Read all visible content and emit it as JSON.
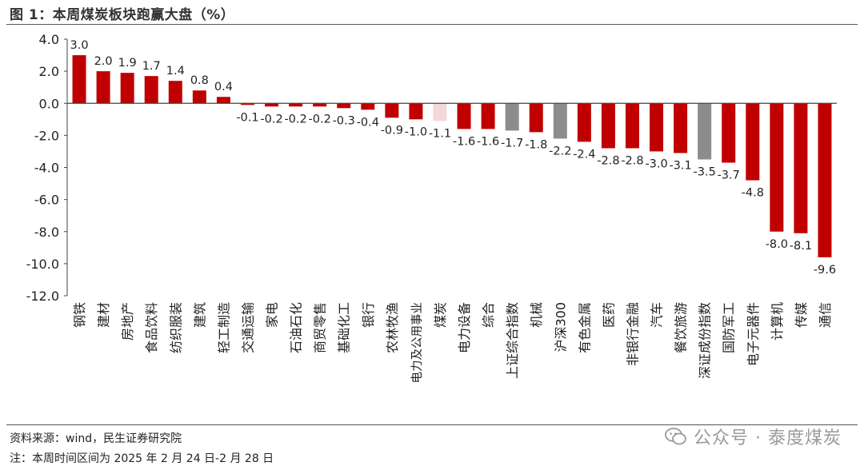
{
  "title": "图 1：本周煤炭板块跑赢大盘（%）",
  "source_note": "资料来源：wind，民生证券研究院",
  "period_note": "注：本周时间区间为 2025 年 2 月 24 日-2 月 28 日",
  "watermark": "公众号 · 泰度煤炭",
  "colors": {
    "red": "#C00000",
    "light": "#F4D7D9",
    "gray": "#8C8C8C",
    "axis": "#444444"
  },
  "chart_data": {
    "type": "bar",
    "ylim": [
      -12,
      4
    ],
    "yticks": [
      "4.0",
      "2.0",
      "0.0",
      "-2.0",
      "-4.0",
      "-6.0",
      "-8.0",
      "-10.0",
      "-12.0"
    ],
    "categories": [
      "钢铁",
      "建材",
      "房地产",
      "食品饮料",
      "纺织服装",
      "建筑",
      "轻工制造",
      "交通运输",
      "家电",
      "石油石化",
      "商贸零售",
      "基础化工",
      "银行",
      "农林牧渔",
      "电力及公用事业",
      "煤炭",
      "电力设备",
      "综合",
      "上证综合指数",
      "机械",
      "沪深300",
      "有色金属",
      "医药",
      "非银行金融",
      "汽车",
      "餐饮旅游",
      "深证成份指数",
      "国防军工",
      "电子元器件",
      "计算机",
      "传媒",
      "通信"
    ],
    "values": [
      3.0,
      2.0,
      1.9,
      1.7,
      1.4,
      0.8,
      0.4,
      -0.1,
      -0.2,
      -0.2,
      -0.2,
      -0.3,
      -0.4,
      -0.9,
      -1.0,
      -1.1,
      -1.6,
      -1.6,
      -1.7,
      -1.8,
      -2.2,
      -2.4,
      -2.8,
      -2.8,
      -3.0,
      -3.1,
      -3.5,
      -3.7,
      -4.8,
      -8.0,
      -8.1,
      -9.6
    ],
    "labels": [
      "3.0",
      "2.0",
      "1.9",
      "1.7",
      "1.4",
      "0.8",
      "0.4",
      "-0.1",
      "-0.2",
      "-0.2",
      "-0.2",
      "-0.3",
      "-0.4",
      "-0.9",
      "-1.0",
      "-1.1",
      "-1.6",
      "-1.6",
      "-1.7",
      "-1.8",
      "-2.2",
      "-2.4",
      "-2.8",
      "-2.8",
      "-3.0",
      "-3.1",
      "-3.5",
      "-3.7",
      "-4.8",
      "-8.0",
      "-8.1",
      "-9.6"
    ],
    "bar_colors": [
      "red",
      "red",
      "red",
      "red",
      "red",
      "red",
      "red",
      "red",
      "red",
      "red",
      "red",
      "red",
      "red",
      "red",
      "red",
      "light",
      "red",
      "red",
      "gray",
      "red",
      "gray",
      "red",
      "red",
      "red",
      "red",
      "red",
      "gray",
      "red",
      "red",
      "red",
      "red",
      "red"
    ]
  }
}
